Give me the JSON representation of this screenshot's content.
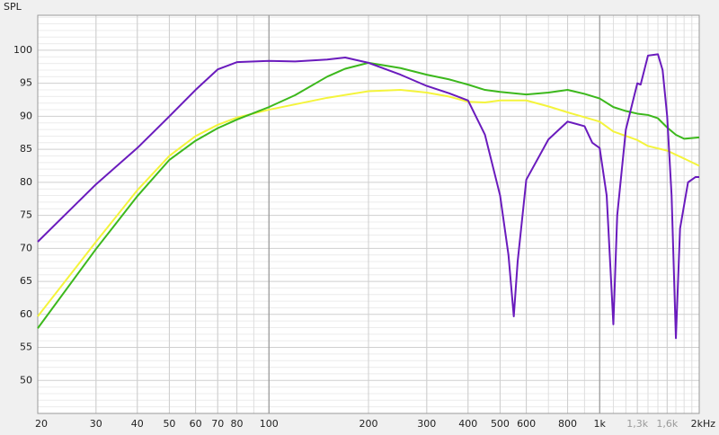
{
  "chart_data": {
    "type": "line",
    "ylabel": "SPL",
    "log_x": true,
    "grid": true,
    "xlim": [
      20,
      2000
    ],
    "ylim": [
      45,
      105.3
    ],
    "xticks": [
      20,
      30,
      40,
      50,
      60,
      70,
      80,
      100,
      200,
      300,
      400,
      500,
      600,
      800,
      {
        "value": 1000,
        "label": "1k"
      },
      {
        "value": 1300,
        "label": "1,3k",
        "color": "#9a9a9a"
      },
      {
        "value": 1600,
        "label": "1,6k",
        "color": "#9a9a9a"
      },
      {
        "value": 2000,
        "label": "2kHz"
      }
    ],
    "yticks": [
      50,
      55,
      60,
      65,
      70,
      75,
      80,
      85,
      90,
      95,
      100
    ],
    "x_minor_grid": [
      30,
      40,
      50,
      60,
      70,
      80,
      90,
      200,
      300,
      400,
      500,
      600,
      700,
      800,
      900,
      1100,
      1200,
      1300,
      1400,
      1500,
      1600,
      1700,
      1800,
      1900
    ],
    "x_major_grid": [
      100,
      1000
    ],
    "y_minor_grid": [
      46,
      47,
      48,
      49,
      51,
      52,
      53,
      54,
      56,
      57,
      58,
      59,
      61,
      62,
      63,
      64,
      66,
      67,
      68,
      69,
      71,
      72,
      73,
      74,
      76,
      77,
      78,
      79,
      81,
      82,
      83,
      84,
      86,
      87,
      88,
      89,
      91,
      92,
      93,
      94,
      96,
      97,
      98,
      99,
      101,
      102,
      103,
      104,
      105
    ],
    "series": [
      {
        "color": "#f4f43c",
        "x": [
          20,
          30,
          40,
          50,
          60,
          70,
          80,
          100,
          150,
          200,
          250,
          300,
          350,
          400,
          450,
          500,
          600,
          700,
          800,
          1000,
          1100,
          1300,
          1400,
          1600,
          1800,
          2000
        ],
        "values": [
          59.7,
          71,
          78.8,
          84,
          87,
          88.7,
          89.8,
          91,
          92.8,
          93.8,
          94,
          93.6,
          93,
          92.2,
          92.1,
          92.4,
          92.4,
          91.5,
          90.6,
          89.2,
          87.7,
          86.4,
          85.5,
          84.8,
          83.6,
          82.5
        ]
      },
      {
        "color": "#3cb81c",
        "x": [
          20,
          30,
          40,
          50,
          60,
          70,
          80,
          100,
          120,
          150,
          170,
          200,
          250,
          300,
          350,
          400,
          450,
          500,
          600,
          700,
          800,
          900,
          1000,
          1100,
          1200,
          1300,
          1400,
          1500,
          1600,
          1700,
          1800,
          1900,
          2000
        ],
        "values": [
          57.9,
          69.9,
          77.9,
          83.4,
          86.3,
          88.2,
          89.5,
          91.4,
          93.2,
          96,
          97.2,
          98.1,
          97.3,
          96.3,
          95.6,
          94.8,
          94,
          93.7,
          93.3,
          93.6,
          94,
          93.4,
          92.7,
          91.4,
          90.8,
          90.4,
          90.2,
          89.7,
          88.3,
          87.2,
          86.6,
          86.7,
          86.8
        ]
      },
      {
        "color": "#6a1bbd",
        "x": [
          20,
          30,
          40,
          50,
          60,
          70,
          80,
          100,
          120,
          150,
          170,
          200,
          250,
          300,
          350,
          400,
          450,
          500,
          530,
          550,
          565,
          600,
          700,
          800,
          900,
          950,
          1000,
          1050,
          1100,
          1130,
          1200,
          1300,
          1330,
          1400,
          1500,
          1550,
          1600,
          1650,
          1700,
          1750,
          1850,
          1950,
          2000
        ],
        "values": [
          71,
          79.7,
          85.2,
          90,
          94,
          97.1,
          98.2,
          98.4,
          98.3,
          98.6,
          98.9,
          98.1,
          96.3,
          94.6,
          93.5,
          92.4,
          87.2,
          78,
          69,
          59.7,
          68,
          80.4,
          86.5,
          89.2,
          88.5,
          86,
          85.2,
          78,
          58.5,
          75,
          88,
          95,
          94.8,
          99.2,
          99.4,
          97,
          90,
          78,
          56.4,
          73,
          80,
          80.8,
          80.8
        ]
      }
    ]
  }
}
